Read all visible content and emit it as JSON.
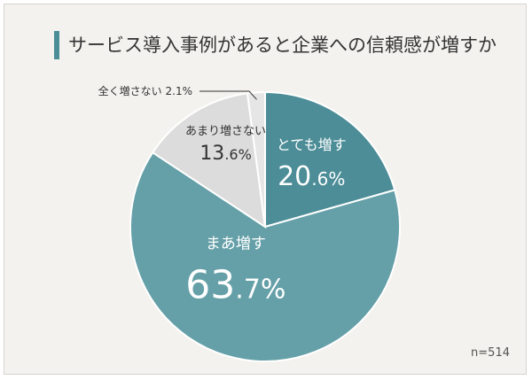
{
  "title": "サービス導入事例があると企業への信頼感が増すか",
  "sample_note": "n=514",
  "colors": {
    "background": "#f3f2ee",
    "accent": "#4c8d97",
    "slice_1": "#4c8d97",
    "slice_2": "#65a0a8",
    "slice_3": "#dcdcdc",
    "slice_4": "#e6e6e6",
    "leader_line": "#333333"
  },
  "chart_data": {
    "type": "pie",
    "title": "サービス導入事例があると企業への信頼感が増すか",
    "start": "top",
    "direction": "clockwise",
    "categories": [
      "とても増す",
      "まあ増す",
      "あまり増さない",
      "全く増さない"
    ],
    "values": [
      20.6,
      63.7,
      13.6,
      2.1
    ],
    "unit": "%",
    "label_style": [
      "inside-light",
      "inside-light",
      "inside-dark",
      "outside-leader"
    ],
    "labels": [
      {
        "name": "とても増す",
        "value": "20",
        "decimal": ".6",
        "unit": "%"
      },
      {
        "name": "まあ増す",
        "value": "63",
        "decimal": ".7",
        "unit": "%"
      },
      {
        "name": "あまり増さない",
        "value": "13",
        "decimal": ".6",
        "unit": "%"
      },
      {
        "name": "全く増さない",
        "value": "2.1",
        "decimal": "",
        "unit": "%"
      }
    ],
    "sample_size": "n=514"
  }
}
